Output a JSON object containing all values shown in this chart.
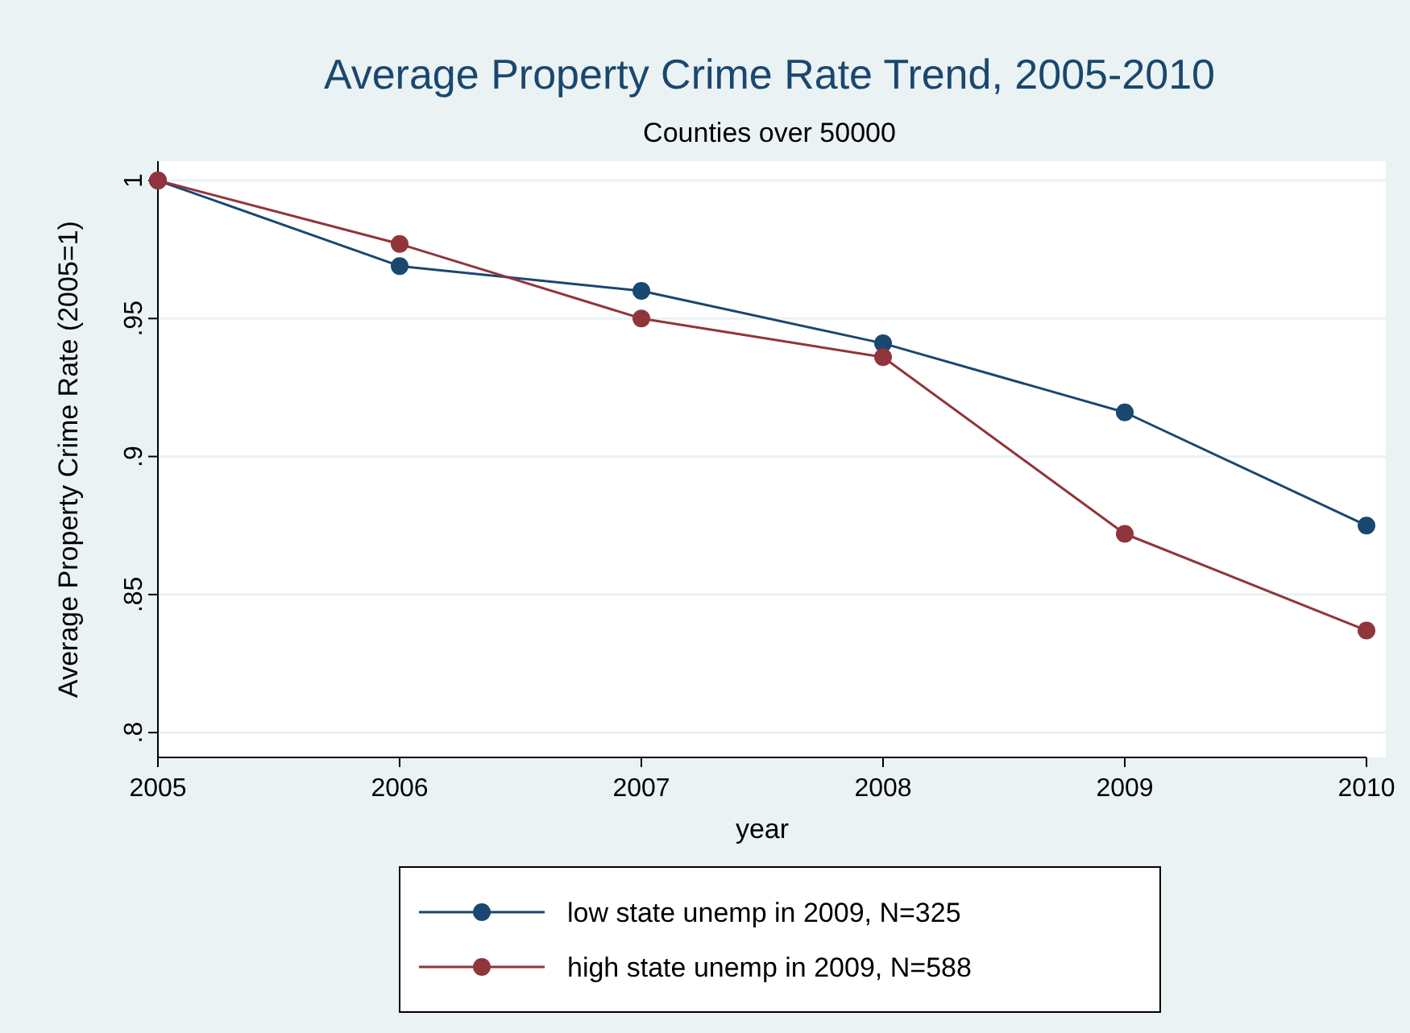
{
  "chart_data": {
    "type": "line",
    "title": "Average Property Crime Rate Trend, 2005-2010",
    "subtitle": "Counties over 50000",
    "xlabel": "year",
    "ylabel": "Average Property Crime Rate (2005=1)",
    "x": [
      2005,
      2006,
      2007,
      2008,
      2009,
      2010
    ],
    "series": [
      {
        "name": "low state unemp in 2009, N=325",
        "color": "#1a476f",
        "values": [
          1.0,
          0.969,
          0.96,
          0.941,
          0.916,
          0.875
        ]
      },
      {
        "name": "high state unemp in 2009, N=588",
        "color": "#90353b",
        "values": [
          1.0,
          0.977,
          0.95,
          0.936,
          0.872,
          0.837
        ]
      }
    ],
    "xlim": [
      2005,
      2010
    ],
    "xticks": [
      2005,
      2006,
      2007,
      2008,
      2009,
      2010
    ],
    "ylim": [
      0.791,
      1.007
    ],
    "yticks": [
      {
        "value": 0.8,
        "label": ".8"
      },
      {
        "value": 0.85,
        "label": ".85"
      },
      {
        "value": 0.9,
        "label": ".9"
      },
      {
        "value": 0.95,
        "label": ".95"
      },
      {
        "value": 1,
        "label": "1"
      }
    ],
    "grid": "y",
    "legend": "bottom",
    "marker": "circle",
    "line_style": "solid"
  }
}
